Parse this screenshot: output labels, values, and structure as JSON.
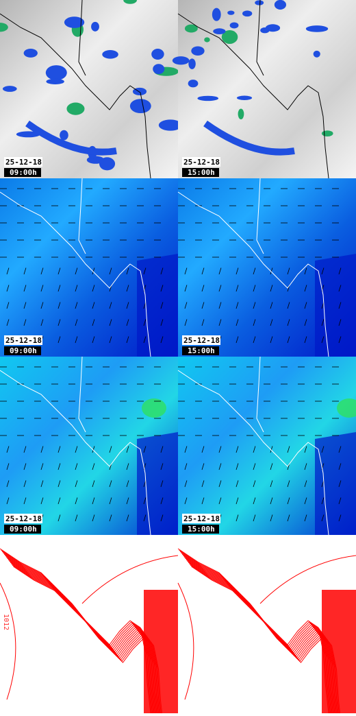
{
  "rows": [
    {
      "panels": [
        {
          "date": "25-12-18",
          "time": "09:00h"
        },
        {
          "date": "25-12-18",
          "time": "15:00h"
        }
      ]
    },
    {
      "panels": [
        {
          "date": "25-12-18",
          "time": "09:00h"
        },
        {
          "date": "25-12-18",
          "time": "15:00h"
        }
      ]
    },
    {
      "panels": [
        {
          "date": "25-12-18",
          "time": "09:00h"
        },
        {
          "date": "25-12-18",
          "time": "15:00h"
        }
      ]
    }
  ],
  "contour_label": "1012"
}
